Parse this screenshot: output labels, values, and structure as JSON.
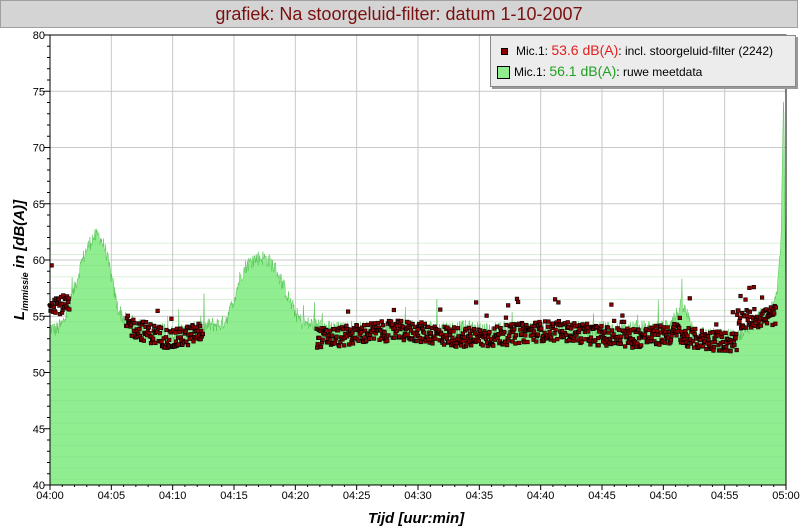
{
  "title": "grafiek: Na stoorgeluid-filter: datum 1-10-2007",
  "chart_data": {
    "type": "area+scatter",
    "title": "grafiek: Na stoorgeluid-filter: datum 1-10-2007",
    "xlabel": "Tijd [uur:min]",
    "ylabel_main": "L",
    "ylabel_sub": "immissie",
    "ylabel_rest": " in [dB(A)]",
    "xlim": [
      0,
      60
    ],
    "ylim": [
      40,
      80
    ],
    "x_ticks": [
      {
        "min": 0,
        "label": "04:00"
      },
      {
        "min": 5,
        "label": "04:05"
      },
      {
        "min": 10,
        "label": "04:10"
      },
      {
        "min": 15,
        "label": "04:15"
      },
      {
        "min": 20,
        "label": "04:20"
      },
      {
        "min": 25,
        "label": "04:25"
      },
      {
        "min": 30,
        "label": "04:30"
      },
      {
        "min": 35,
        "label": "04:35"
      },
      {
        "min": 40,
        "label": "04:40"
      },
      {
        "min": 45,
        "label": "04:45"
      },
      {
        "min": 50,
        "label": "04:50"
      },
      {
        "min": 55,
        "label": "04:55"
      },
      {
        "min": 60,
        "label": "05:00"
      }
    ],
    "y_ticks": [
      40,
      45,
      50,
      55,
      60,
      65,
      70,
      75,
      80
    ],
    "grid": true,
    "legend_position": "top-right",
    "series": [
      {
        "name": "ruwe meetdata",
        "kind": "area",
        "color": "#90ee90",
        "x_minutes": [
          0,
          0.5,
          1,
          1.5,
          2,
          2.5,
          3,
          3.5,
          4,
          4.5,
          5,
          5.5,
          6,
          6.5,
          7,
          7.5,
          8,
          8.5,
          9,
          9.5,
          10,
          10.5,
          11,
          11.5,
          12,
          12.5,
          13,
          13.5,
          14,
          14.5,
          15,
          15.5,
          16,
          16.5,
          17,
          17.5,
          18,
          18.5,
          19,
          19.5,
          20,
          20.5,
          21,
          21.5,
          22,
          22.5,
          23,
          24,
          25,
          26,
          27,
          28,
          29,
          30,
          31,
          32,
          33,
          34,
          35,
          36,
          37,
          38,
          39,
          40,
          41,
          42,
          43,
          44,
          45,
          46,
          47,
          48,
          49,
          50,
          51,
          51.5,
          52,
          52.5,
          53,
          54,
          55,
          56,
          57,
          57.5,
          58,
          58.5,
          59,
          59.3,
          59.6,
          59.8,
          60
        ],
        "values": [
          54.0,
          53.8,
          54.3,
          55.5,
          57.5,
          59.5,
          61.0,
          62.0,
          62.2,
          61.0,
          58.5,
          55.8,
          54.8,
          54.5,
          54.3,
          54.0,
          54.0,
          53.8,
          53.8,
          53.6,
          53.5,
          53.5,
          53.7,
          53.8,
          53.9,
          54.0,
          54.2,
          54.3,
          54.3,
          55.0,
          56.5,
          58.5,
          59.5,
          60.0,
          60.2,
          60.2,
          59.8,
          59.0,
          57.8,
          56.5,
          55.3,
          54.5,
          54.3,
          54.3,
          54.2,
          54.0,
          53.9,
          53.8,
          53.8,
          53.9,
          54.0,
          54.0,
          54.0,
          54.1,
          54.0,
          53.9,
          53.9,
          54.0,
          53.8,
          53.8,
          53.9,
          53.9,
          53.8,
          54.0,
          53.8,
          54.0,
          53.9,
          53.8,
          53.9,
          53.8,
          53.9,
          54.0,
          53.9,
          54.0,
          55.0,
          56.0,
          55.0,
          53.8,
          53.5,
          53.3,
          53.2,
          53.3,
          54.0,
          54.6,
          55.0,
          55.3,
          55.8,
          57.5,
          62.0,
          75.5,
          55.5
        ]
      },
      {
        "name": "incl. stoorgeluid-filter (2242)",
        "kind": "scatter",
        "color": "#8b0000",
        "note": "dense markers sampled from the filtered level profile",
        "gaps_minutes": [
          [
            1.6,
            6.2
          ],
          [
            12.5,
            21.7
          ],
          [
            59.2,
            60
          ]
        ]
      }
    ]
  },
  "legend": {
    "items": [
      {
        "prefix": "Mic.1: ",
        "value": "53.6 dB(A)",
        "value_color": "#e02020",
        "suffix": ": incl. stoorgeluid-filter (2242)"
      },
      {
        "prefix": "Mic.1: ",
        "value": "56.1 dB(A)",
        "value_color": "#20a020",
        "suffix": ": ruwe meetdata"
      }
    ]
  }
}
